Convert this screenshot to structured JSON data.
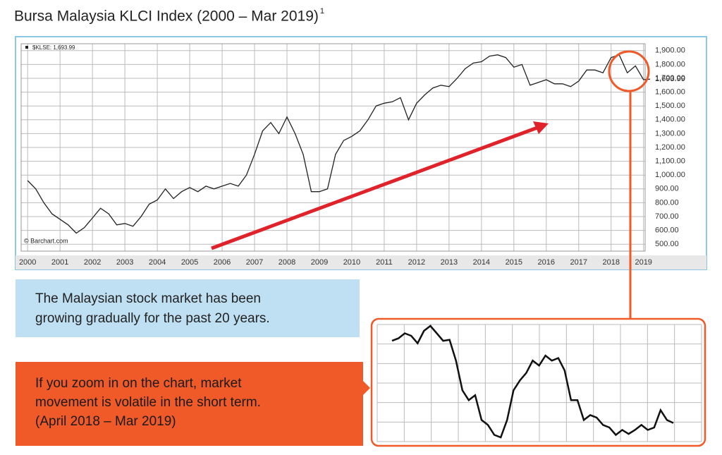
{
  "chart_data": {
    "type": "line",
    "title": "Bursa Malaysia KLCI Index (2000 – Mar 2019)",
    "title_footnote": "1",
    "source": "© Barchart.com",
    "color": "#222222",
    "grid": true,
    "xlim": [
      1999.8,
      2019.05
    ],
    "ylim": [
      450,
      1950
    ],
    "xticks": [
      2000,
      2001,
      2002,
      2003,
      2004,
      2005,
      2006,
      2007,
      2008,
      2009,
      2010,
      2011,
      2012,
      2013,
      2014,
      2015,
      2016,
      2017,
      2018,
      2019
    ],
    "yticks": [
      {
        "value": 500,
        "label": "500.00"
      },
      {
        "value": 600,
        "label": "600.00"
      },
      {
        "value": 700,
        "label": "700.00"
      },
      {
        "value": 800,
        "label": "800.00"
      },
      {
        "value": 900,
        "label": "900.00"
      },
      {
        "value": 1000,
        "label": "1,000.00"
      },
      {
        "value": 1100,
        "label": "1,100.00"
      },
      {
        "value": 1200,
        "label": "1,200.00"
      },
      {
        "value": 1300,
        "label": "1,300.00"
      },
      {
        "value": 1400,
        "label": "1,400.00"
      },
      {
        "value": 1500,
        "label": "1,500.00"
      },
      {
        "value": 1600,
        "label": "1,600.00"
      },
      {
        "value": 1700,
        "label": "1,700.00"
      },
      {
        "value": 1800,
        "label": "1,800.00"
      },
      {
        "value": 1900,
        "label": "1,900.00"
      }
    ],
    "last_value_tick": {
      "value": 1693.99,
      "label": "1,693.99"
    },
    "x": [
      2000,
      2000.25,
      2000.5,
      2000.75,
      2001,
      2001.25,
      2001.5,
      2001.75,
      2002,
      2002.25,
      2002.5,
      2002.75,
      2003,
      2003.25,
      2003.5,
      2003.75,
      2004,
      2004.25,
      2004.5,
      2004.75,
      2005,
      2005.25,
      2005.5,
      2005.75,
      2006,
      2006.25,
      2006.5,
      2006.75,
      2007,
      2007.25,
      2007.5,
      2007.75,
      2008,
      2008.25,
      2008.5,
      2008.75,
      2009,
      2009.25,
      2009.5,
      2009.75,
      2010,
      2010.25,
      2010.5,
      2010.75,
      2011,
      2011.25,
      2011.5,
      2011.75,
      2012,
      2012.25,
      2012.5,
      2012.75,
      2013,
      2013.25,
      2013.5,
      2013.75,
      2014,
      2014.25,
      2014.5,
      2014.75,
      2015,
      2015.25,
      2015.5,
      2015.75,
      2016,
      2016.25,
      2016.5,
      2016.75,
      2017,
      2017.25,
      2017.5,
      2017.75,
      2018,
      2018.25,
      2018.5,
      2018.75,
      2019,
      2019.2
    ],
    "series": [
      {
        "name": "$KLSE: 1,693.99",
        "color": "#222222",
        "values": [
          960,
          900,
          800,
          720,
          680,
          640,
          580,
          620,
          690,
          760,
          720,
          640,
          650,
          630,
          700,
          790,
          820,
          900,
          830,
          880,
          910,
          880,
          920,
          900,
          920,
          940,
          920,
          1000,
          1150,
          1320,
          1380,
          1300,
          1420,
          1300,
          1150,
          880,
          880,
          900,
          1150,
          1250,
          1280,
          1320,
          1400,
          1500,
          1520,
          1530,
          1560,
          1400,
          1520,
          1580,
          1630,
          1650,
          1640,
          1700,
          1770,
          1810,
          1820,
          1860,
          1870,
          1850,
          1780,
          1800,
          1650,
          1670,
          1690,
          1660,
          1660,
          1640,
          1680,
          1760,
          1760,
          1740,
          1850,
          1870,
          1740,
          1790,
          1690,
          1693.99
        ]
      }
    ],
    "zoom": {
      "color": "#111111",
      "values": [
        1860,
        1865,
        1875,
        1870,
        1855,
        1880,
        1890,
        1875,
        1860,
        1862,
        1820,
        1760,
        1740,
        1750,
        1700,
        1690,
        1670,
        1665,
        1700,
        1760,
        1780,
        1795,
        1820,
        1810,
        1830,
        1820,
        1825,
        1800,
        1740,
        1740,
        1700,
        1710,
        1705,
        1690,
        1685,
        1670,
        1680,
        1672,
        1680,
        1690,
        1680,
        1685,
        1720,
        1700,
        1694
      ]
    },
    "notes": {
      "blue": [
        "The Malaysian stock market has been",
        "growing gradually for the past 20 years."
      ],
      "orange": [
        "If you zoom in on the chart, market",
        "movement is volatile in the short term.",
        "(April 2018 – Mar 2019)"
      ]
    }
  }
}
